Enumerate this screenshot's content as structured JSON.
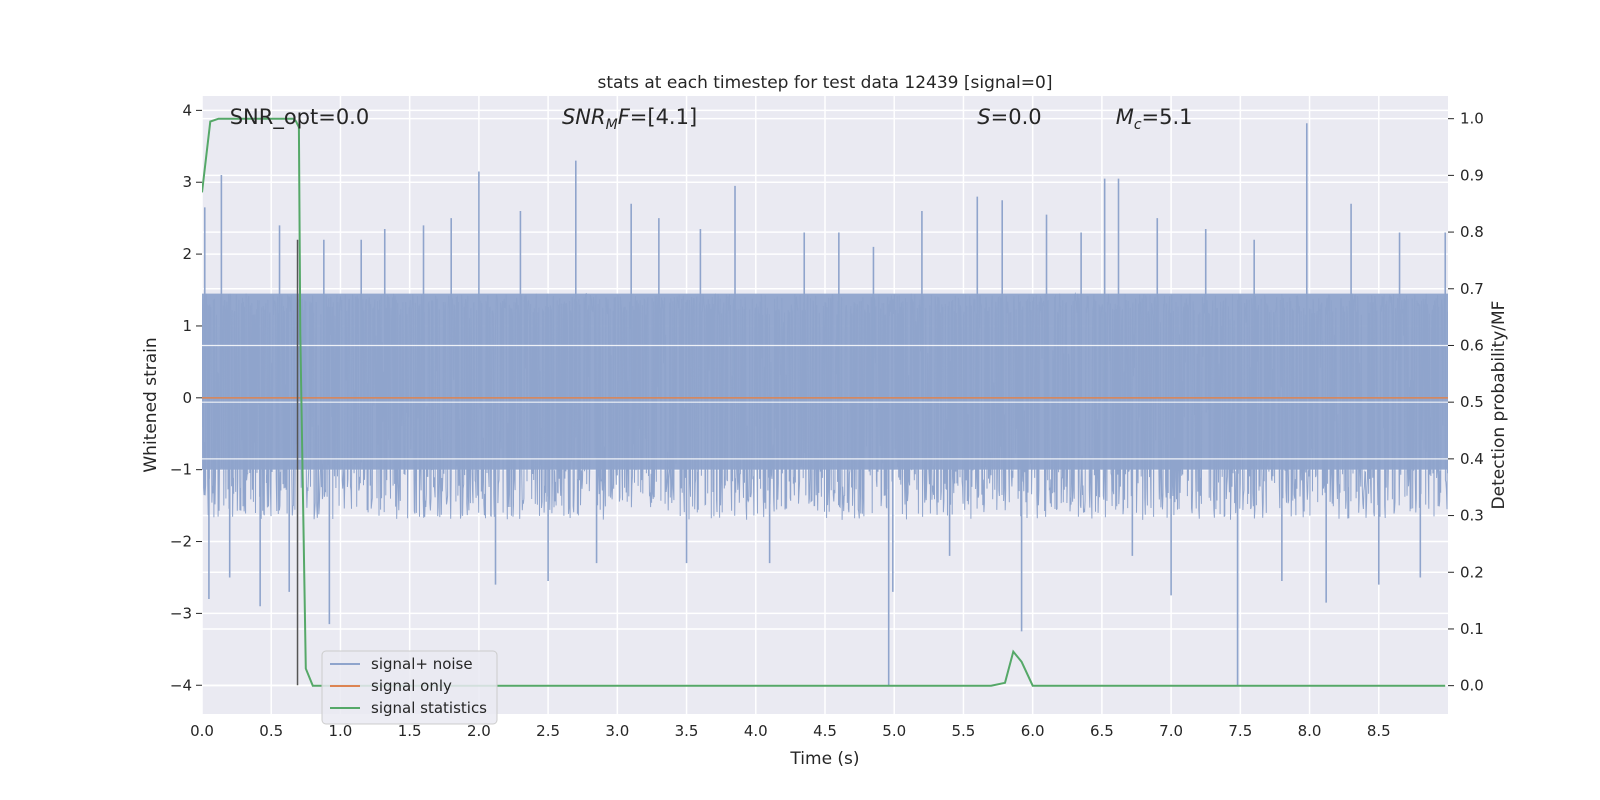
{
  "chart_data": {
    "type": "line",
    "title": "stats at each timestep for test data 12439 [signal=0]",
    "xlabel": "Time (s)",
    "ylabel_left": "Whitened strain",
    "ylabel_right": "Detection probability/MF",
    "xlim": [
      0.0,
      9.0
    ],
    "ylim_left": [
      -4.4,
      4.2
    ],
    "ylim_right": [
      -0.05,
      1.04
    ],
    "xticks": [
      "0.0",
      "0.5",
      "1.0",
      "1.5",
      "2.0",
      "2.5",
      "3.0",
      "3.5",
      "4.0",
      "4.5",
      "5.0",
      "5.5",
      "6.0",
      "6.5",
      "7.0",
      "7.5",
      "8.0",
      "8.5"
    ],
    "yticks_left": [
      "−4",
      "−3",
      "−2",
      "−1",
      "0",
      "1",
      "2",
      "3",
      "4"
    ],
    "yticks_right": [
      "0.0",
      "0.1",
      "0.2",
      "0.3",
      "0.4",
      "0.5",
      "0.6",
      "0.7",
      "0.8",
      "0.9",
      "1.0"
    ],
    "grid": true,
    "legend_placement": "lower-left",
    "annotations": [
      {
        "text": "SNR_opt=0.0",
        "x": 0.2
      },
      {
        "text": "SNR_MF=[4.1]",
        "x": 2.6
      },
      {
        "text": "S=0.0",
        "x": 5.6
      },
      {
        "text": "M_c=5.1",
        "x": 6.6
      }
    ],
    "vline": {
      "x": 0.69,
      "y": [
        -4.0,
        2.2
      ],
      "color": "#555555"
    },
    "series": [
      {
        "name": "signal+ noise",
        "color": "#8fa4cc",
        "axis": "left",
        "band": {
          "lower": -1.0,
          "upper": 1.45
        },
        "spikes": [
          [
            0.02,
            2.65
          ],
          [
            0.05,
            -2.8
          ],
          [
            0.14,
            3.1
          ],
          [
            0.2,
            -2.5
          ],
          [
            0.42,
            -2.9
          ],
          [
            0.56,
            2.4
          ],
          [
            0.63,
            -2.7
          ],
          [
            0.88,
            2.2
          ],
          [
            0.92,
            -3.15
          ],
          [
            1.15,
            2.2
          ],
          [
            1.32,
            2.35
          ],
          [
            1.6,
            2.4
          ],
          [
            1.8,
            2.5
          ],
          [
            2.0,
            3.15
          ],
          [
            2.12,
            -2.6
          ],
          [
            2.3,
            2.6
          ],
          [
            2.5,
            -2.55
          ],
          [
            2.7,
            3.3
          ],
          [
            2.85,
            -2.3
          ],
          [
            3.1,
            2.7
          ],
          [
            3.3,
            2.5
          ],
          [
            3.5,
            -2.3
          ],
          [
            3.6,
            2.35
          ],
          [
            3.85,
            2.95
          ],
          [
            4.1,
            -2.3
          ],
          [
            4.35,
            2.3
          ],
          [
            4.6,
            2.3
          ],
          [
            4.85,
            2.1
          ],
          [
            4.96,
            -4.0
          ],
          [
            4.99,
            -2.7
          ],
          [
            5.2,
            2.6
          ],
          [
            5.4,
            -2.2
          ],
          [
            5.6,
            2.8
          ],
          [
            5.78,
            2.75
          ],
          [
            5.92,
            -3.25
          ],
          [
            6.1,
            2.55
          ],
          [
            6.35,
            2.3
          ],
          [
            6.52,
            3.05
          ],
          [
            6.62,
            3.05
          ],
          [
            6.72,
            -2.2
          ],
          [
            6.9,
            2.5
          ],
          [
            7.0,
            -2.75
          ],
          [
            7.25,
            2.35
          ],
          [
            7.48,
            -4.0
          ],
          [
            7.6,
            2.2
          ],
          [
            7.8,
            -2.55
          ],
          [
            7.98,
            3.82
          ],
          [
            8.12,
            -2.85
          ],
          [
            8.3,
            2.7
          ],
          [
            8.5,
            -2.6
          ],
          [
            8.65,
            2.3
          ],
          [
            8.8,
            -2.5
          ],
          [
            8.98,
            2.3
          ]
        ]
      },
      {
        "name": "signal only",
        "color": "#dd8452",
        "axis": "left",
        "x": [
          0.0,
          9.0
        ],
        "y": [
          0.0,
          0.0
        ]
      },
      {
        "name": "signal statistics",
        "color": "#55a868",
        "axis": "right",
        "x": [
          0.0,
          0.06,
          0.12,
          0.2,
          0.3,
          0.4,
          0.5,
          0.6,
          0.66,
          0.68,
          0.7,
          0.71,
          0.75,
          0.8,
          1.0,
          2.0,
          3.0,
          4.0,
          5.0,
          5.7,
          5.8,
          5.86,
          5.92,
          6.0,
          6.1,
          7.0,
          8.0,
          8.98
        ],
        "y": [
          0.87,
          0.995,
          1.0,
          1.0,
          1.0,
          1.0,
          1.0,
          1.0,
          1.0,
          0.995,
          0.985,
          0.62,
          0.03,
          0.0,
          0.0,
          0.0,
          0.0,
          0.0,
          0.0,
          0.0,
          0.005,
          0.06,
          0.042,
          0.0,
          0.0,
          0.0,
          0.0,
          0.0
        ]
      }
    ]
  }
}
